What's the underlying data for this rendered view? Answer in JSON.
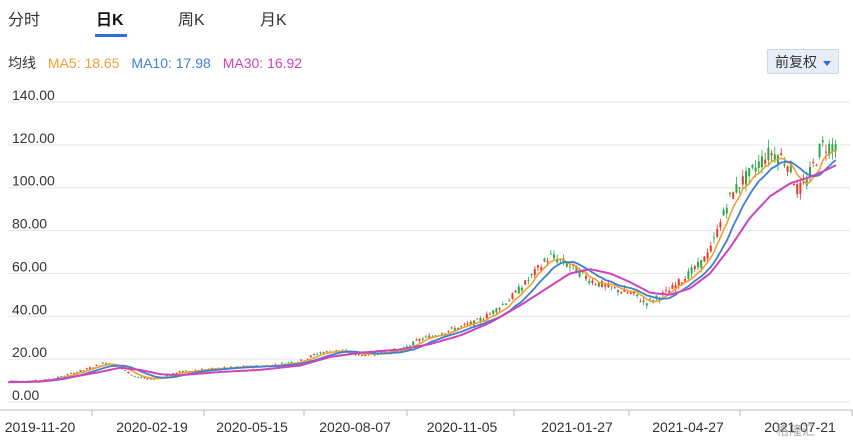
{
  "tabs": [
    {
      "label": "分时",
      "active": false
    },
    {
      "label": "日K",
      "active": true
    },
    {
      "label": "周K",
      "active": false
    },
    {
      "label": "月K",
      "active": false
    }
  ],
  "ma_header": {
    "label": "均线",
    "ma5": {
      "name": "MA5",
      "value": "18.65",
      "color": "#f0a030"
    },
    "ma10": {
      "name": "MA10",
      "value": "17.98",
      "color": "#3f7fd0"
    },
    "ma30": {
      "name": "MA30",
      "value": "16.92",
      "color": "#cc44bb"
    }
  },
  "adjust_button": {
    "label": "前复权"
  },
  "watermark": "格隆汇",
  "colors": {
    "up": "#e8392b",
    "down": "#2aa84a",
    "grid": "#e6e6e6"
  },
  "chart_data": {
    "type": "candlestick",
    "title": "",
    "ylim": [
      0,
      140
    ],
    "y_ticks": [
      "0.00",
      "20.00",
      "40.00",
      "60.00",
      "80.00",
      "100.00",
      "120.00",
      "140.00"
    ],
    "x_ticks": [
      "2019-11-20",
      "2020-02-19",
      "2020-05-15",
      "2020-08-07",
      "2020-11-05",
      "2021-01-27",
      "2021-04-27",
      "2021-07-21"
    ],
    "grid": true,
    "series": [
      {
        "name": "MA5",
        "color": "#f0a030"
      },
      {
        "name": "MA10",
        "color": "#3f7fd0"
      },
      {
        "name": "MA30",
        "color": "#cc44bb"
      }
    ],
    "trend": [
      [
        0,
        9.5
      ],
      [
        20,
        9.5
      ],
      [
        40,
        10
      ],
      [
        55,
        11
      ],
      [
        70,
        13
      ],
      [
        85,
        15
      ],
      [
        100,
        17.5
      ],
      [
        108,
        18.5
      ],
      [
        120,
        16
      ],
      [
        135,
        12
      ],
      [
        150,
        10.5
      ],
      [
        165,
        12
      ],
      [
        180,
        14
      ],
      [
        200,
        15
      ],
      [
        230,
        16
      ],
      [
        270,
        17
      ],
      [
        300,
        19
      ],
      [
        320,
        23
      ],
      [
        340,
        24
      ],
      [
        360,
        22
      ],
      [
        380,
        23
      ],
      [
        400,
        24
      ],
      [
        420,
        29
      ],
      [
        440,
        32
      ],
      [
        460,
        35
      ],
      [
        475,
        37
      ],
      [
        490,
        41
      ],
      [
        510,
        48
      ],
      [
        525,
        55
      ],
      [
        540,
        63
      ],
      [
        550,
        68
      ],
      [
        560,
        66
      ],
      [
        575,
        62
      ],
      [
        590,
        57
      ],
      [
        605,
        54
      ],
      [
        620,
        52
      ],
      [
        635,
        50
      ],
      [
        645,
        46
      ],
      [
        655,
        48
      ],
      [
        670,
        52
      ],
      [
        685,
        58
      ],
      [
        700,
        64
      ],
      [
        710,
        70
      ],
      [
        720,
        83
      ],
      [
        730,
        95
      ],
      [
        740,
        102
      ],
      [
        750,
        106
      ],
      [
        760,
        112
      ],
      [
        770,
        116
      ],
      [
        780,
        115
      ],
      [
        790,
        110
      ],
      [
        798,
        98
      ],
      [
        806,
        102
      ],
      [
        815,
        112
      ],
      [
        822,
        120
      ],
      [
        830,
        119
      ],
      [
        838,
        121
      ]
    ],
    "ma30_trend": [
      [
        0,
        9.2
      ],
      [
        40,
        9.5
      ],
      [
        70,
        11.5
      ],
      [
        100,
        14
      ],
      [
        120,
        16
      ],
      [
        140,
        15
      ],
      [
        160,
        13
      ],
      [
        180,
        12.5
      ],
      [
        220,
        14
      ],
      [
        260,
        15
      ],
      [
        300,
        17
      ],
      [
        330,
        21
      ],
      [
        360,
        23
      ],
      [
        400,
        24.5
      ],
      [
        430,
        27
      ],
      [
        460,
        31
      ],
      [
        490,
        37
      ],
      [
        520,
        45
      ],
      [
        550,
        54
      ],
      [
        570,
        60
      ],
      [
        590,
        62
      ],
      [
        610,
        60
      ],
      [
        630,
        56
      ],
      [
        650,
        51
      ],
      [
        670,
        50
      ],
      [
        690,
        53
      ],
      [
        710,
        60
      ],
      [
        730,
        72
      ],
      [
        750,
        86
      ],
      [
        770,
        96
      ],
      [
        790,
        102
      ],
      [
        810,
        105
      ],
      [
        825,
        108
      ],
      [
        838,
        111
      ]
    ]
  }
}
